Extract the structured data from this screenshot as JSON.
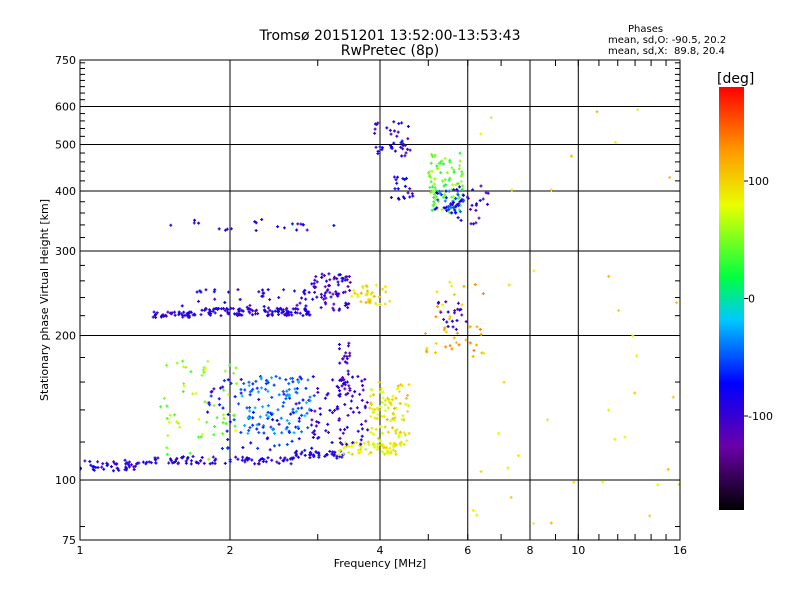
{
  "chart_data": {
    "type": "scatter",
    "title": "Tromsø 20151201 13:52:00-13:53:43",
    "subtitle": "RwPretec (8p)",
    "xlabel": "Frequency [MHz]",
    "ylabel": "Stationary phase Virtual Height [km]",
    "x_scale": "log",
    "y_scale": "log",
    "xlim": [
      1,
      16
    ],
    "ylim": [
      75,
      750
    ],
    "x_ticks": [
      1,
      2,
      4,
      6,
      8,
      10,
      16
    ],
    "x_tick_labels": [
      "1",
      "2",
      "4",
      "6",
      "8",
      "10",
      "16"
    ],
    "x_grid": [
      2,
      4,
      6,
      8,
      10
    ],
    "y_ticks": [
      75,
      100,
      200,
      300,
      400,
      500,
      600,
      750
    ],
    "y_tick_labels": [
      "75",
      "100",
      "200",
      "300",
      "400",
      "500",
      "600",
      "750"
    ],
    "y_grid": [
      100,
      200,
      300,
      400,
      500,
      600
    ],
    "grid": true,
    "legend_header": "Phases",
    "stats": [
      "mean, sd,O: -90.5, 20.2",
      "mean, sd,X:  89.8, 20.4"
    ],
    "colorbar": {
      "label": "[deg]",
      "range": [
        -180,
        180
      ],
      "ticks": [
        100,
        0,
        -100
      ],
      "tick_labels": [
        "100",
        "0",
        "-100"
      ],
      "colormap": "rainbow: black-purple-blue-cyan-green-yellow-orange-red"
    },
    "point_groups": [
      {
        "x": [
          1.0,
          1.3
        ],
        "y": [
          104,
          110
        ],
        "phase": -90,
        "n": 45
      },
      {
        "x": [
          1.3,
          2.7
        ],
        "y": [
          108,
          112
        ],
        "phase": -90,
        "n": 90
      },
      {
        "x": [
          2.7,
          3.4
        ],
        "y": [
          111,
          115
        ],
        "phase": -85,
        "n": 40
      },
      {
        "x": [
          3.3,
          4.4
        ],
        "y": [
          113,
          120
        ],
        "phase": 80,
        "n": 60
      },
      {
        "x": [
          3.8,
          4.6
        ],
        "y": [
          118,
          160
        ],
        "phase": 90,
        "n": 90
      },
      {
        "x": [
          1.45,
          2.1
        ],
        "y": [
          110,
          180
        ],
        "phase": 55,
        "n": 60
      },
      {
        "x": [
          1.8,
          3.0
        ],
        "y": [
          115,
          165
        ],
        "phase": -75,
        "n": 70
      },
      {
        "x": [
          2.1,
          2.9
        ],
        "y": [
          125,
          165
        ],
        "phase": -40,
        "n": 110
      },
      {
        "x": [
          2.9,
          3.8
        ],
        "y": [
          118,
          165
        ],
        "phase": -95,
        "n": 80
      },
      {
        "x": [
          3.3,
          3.5
        ],
        "y": [
          150,
          200
        ],
        "phase": -105,
        "n": 30
      },
      {
        "x": [
          1.4,
          1.75
        ],
        "y": [
          218,
          224
        ],
        "phase": -95,
        "n": 40
      },
      {
        "x": [
          1.75,
          2.9
        ],
        "y": [
          220,
          228
        ],
        "phase": -95,
        "n": 110
      },
      {
        "x": [
          2.9,
          3.5
        ],
        "y": [
          225,
          270
        ],
        "phase": -100,
        "n": 70
      },
      {
        "x": [
          1.6,
          2.9
        ],
        "y": [
          225,
          250
        ],
        "phase": -90,
        "n": 40
      },
      {
        "x": [
          3.5,
          4.2
        ],
        "y": [
          232,
          255
        ],
        "phase": 95,
        "n": 35
      },
      {
        "x": [
          1.5,
          3.3
        ],
        "y": [
          330,
          350
        ],
        "phase": -90,
        "n": 22
      },
      {
        "x": [
          3.9,
          4.6
        ],
        "y": [
          470,
          560
        ],
        "phase": -90,
        "n": 40
      },
      {
        "x": [
          4.2,
          4.7
        ],
        "y": [
          380,
          430
        ],
        "phase": -90,
        "n": 20
      },
      {
        "x": [
          5.0,
          5.9
        ],
        "y": [
          360,
          480
        ],
        "phase": 40,
        "n": 90
      },
      {
        "x": [
          5.1,
          5.9
        ],
        "y": [
          360,
          400
        ],
        "phase": -60,
        "n": 40
      },
      {
        "x": [
          5.5,
          6.6
        ],
        "y": [
          340,
          410
        ],
        "phase": -100,
        "n": 30
      },
      {
        "x": [
          4.9,
          6.5
        ],
        "y": [
          180,
          260
        ],
        "phase": 110,
        "n": 40
      },
      {
        "x": [
          5.2,
          6.0
        ],
        "y": [
          200,
          240
        ],
        "phase": -95,
        "n": 20
      },
      {
        "x": [
          6.0,
          16.0
        ],
        "y": [
          80,
          600
        ],
        "phase": 90,
        "n": 40
      }
    ]
  }
}
